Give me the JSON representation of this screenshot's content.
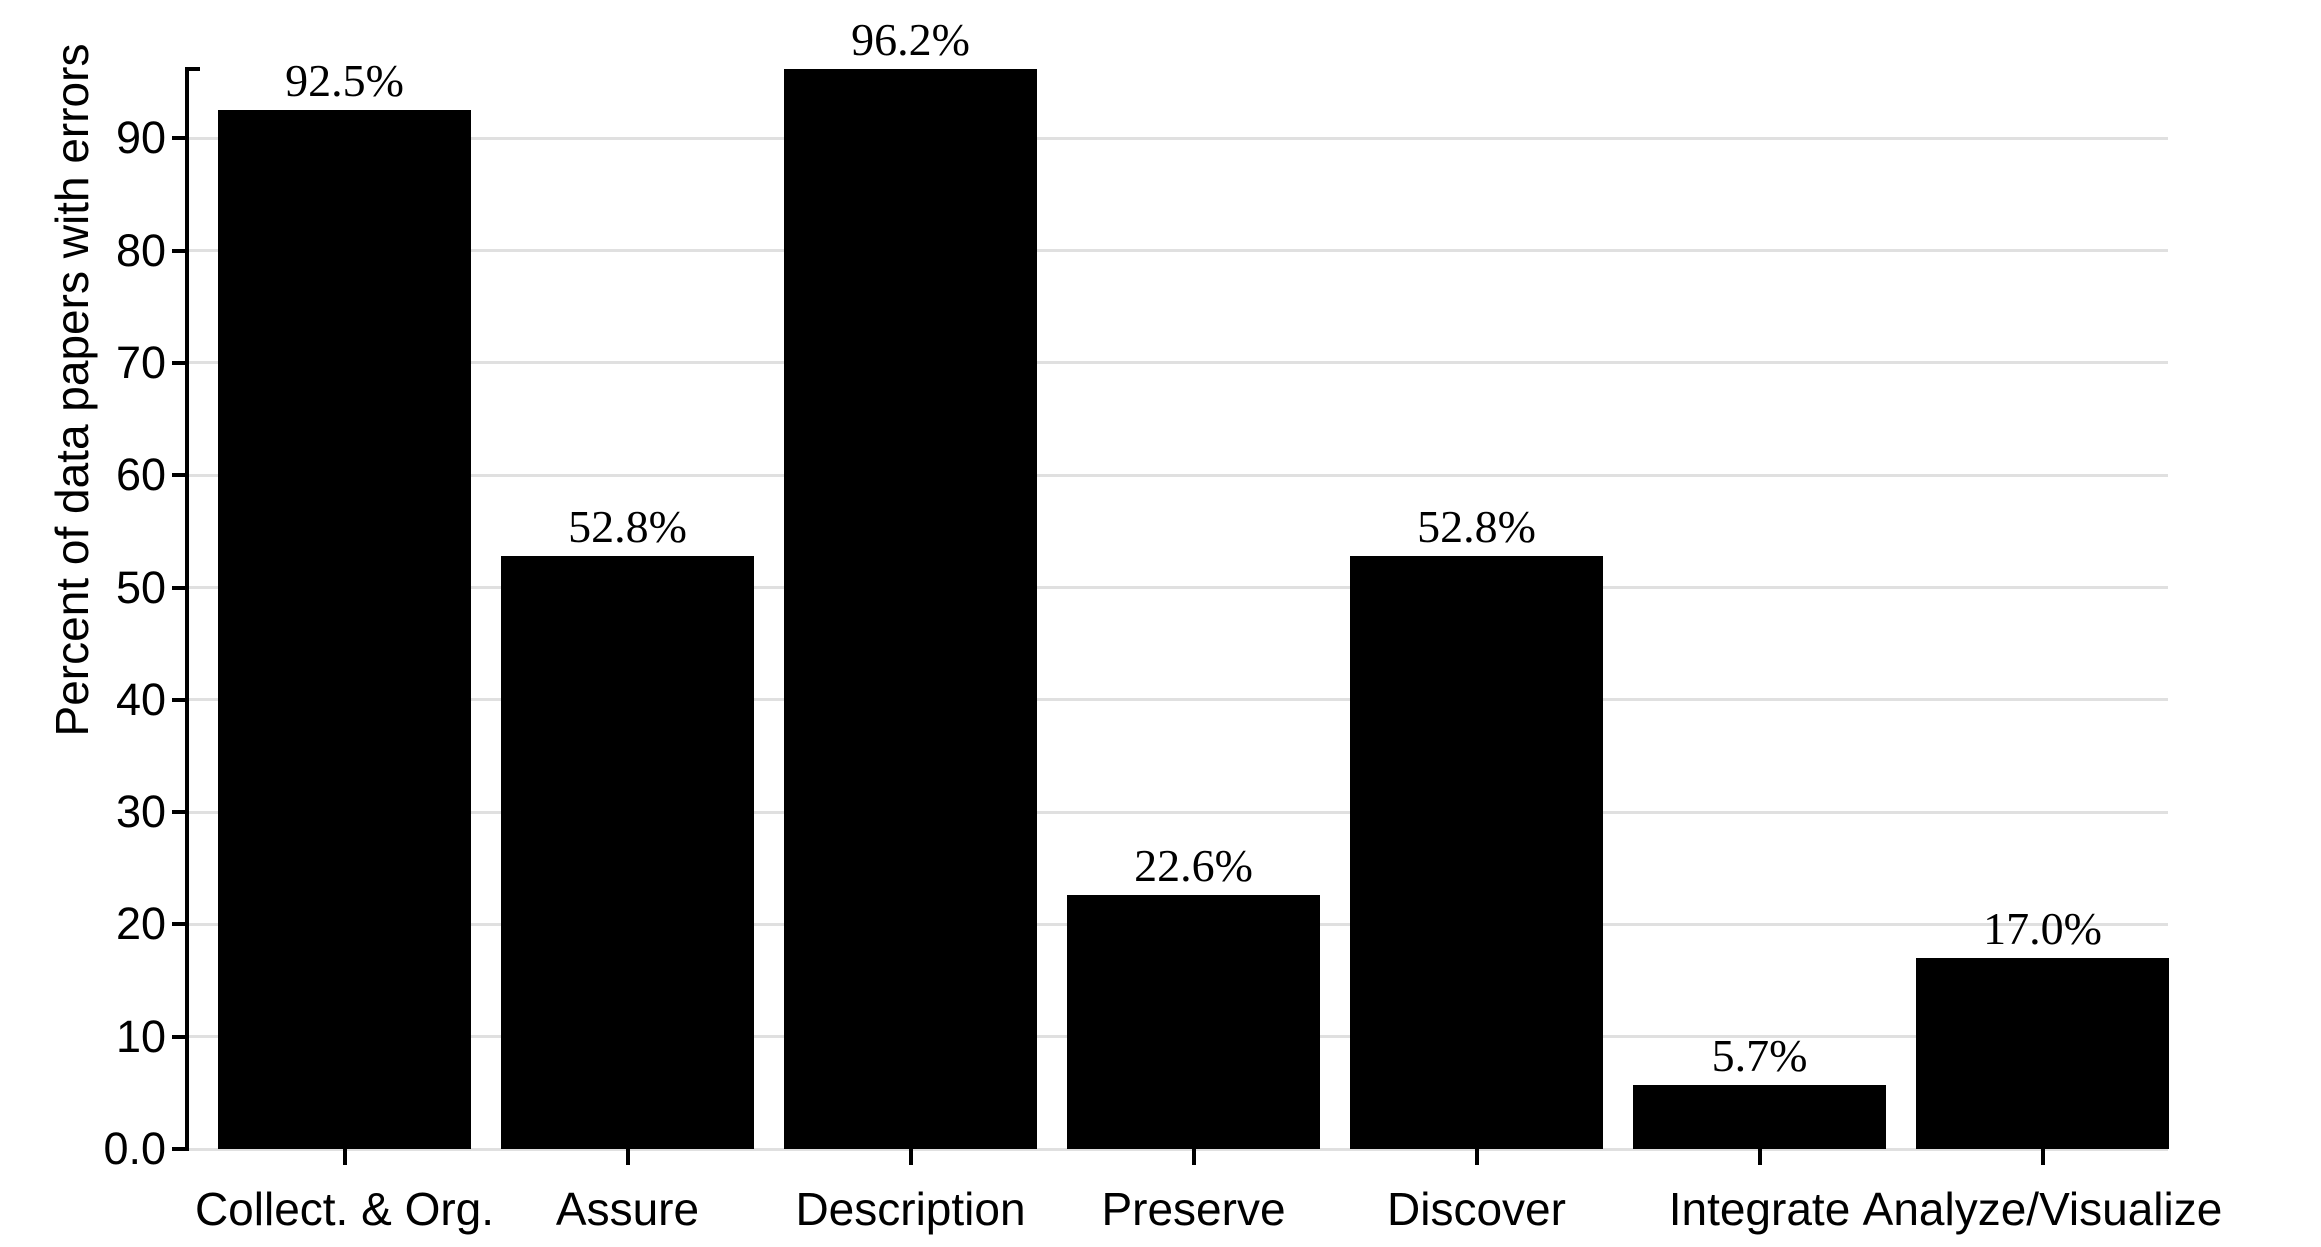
{
  "chart_data": {
    "type": "bar",
    "title": "",
    "xlabel": "",
    "ylabel": "Percent of data papers with errors",
    "categories": [
      "Collect. & Org.",
      "Assure",
      "Description",
      "Preserve",
      "Discover",
      "Integrate",
      "Analyze/Visualize"
    ],
    "values": [
      92.5,
      52.8,
      96.2,
      22.6,
      52.8,
      5.7,
      17.0
    ],
    "value_labels": [
      "92.5%",
      "52.8%",
      "96.2%",
      "22.6%",
      "52.8%",
      "5.7%",
      "17.0%"
    ],
    "y_ticks": {
      "values": [
        0,
        10,
        20,
        30,
        40,
        50,
        60,
        70,
        80,
        90
      ],
      "labels": [
        "0.0",
        "10",
        "20",
        "30",
        "40",
        "50",
        "60",
        "70",
        "80",
        "90"
      ]
    },
    "ylim": [
      0,
      96.2
    ],
    "grid": "horizontal-light-gray",
    "legend": "none",
    "bar_color": "#000000",
    "grid_color": "#e0e0e0",
    "axis_color": "#000000",
    "text_color": "#000000",
    "background_color": "#ffffff"
  }
}
